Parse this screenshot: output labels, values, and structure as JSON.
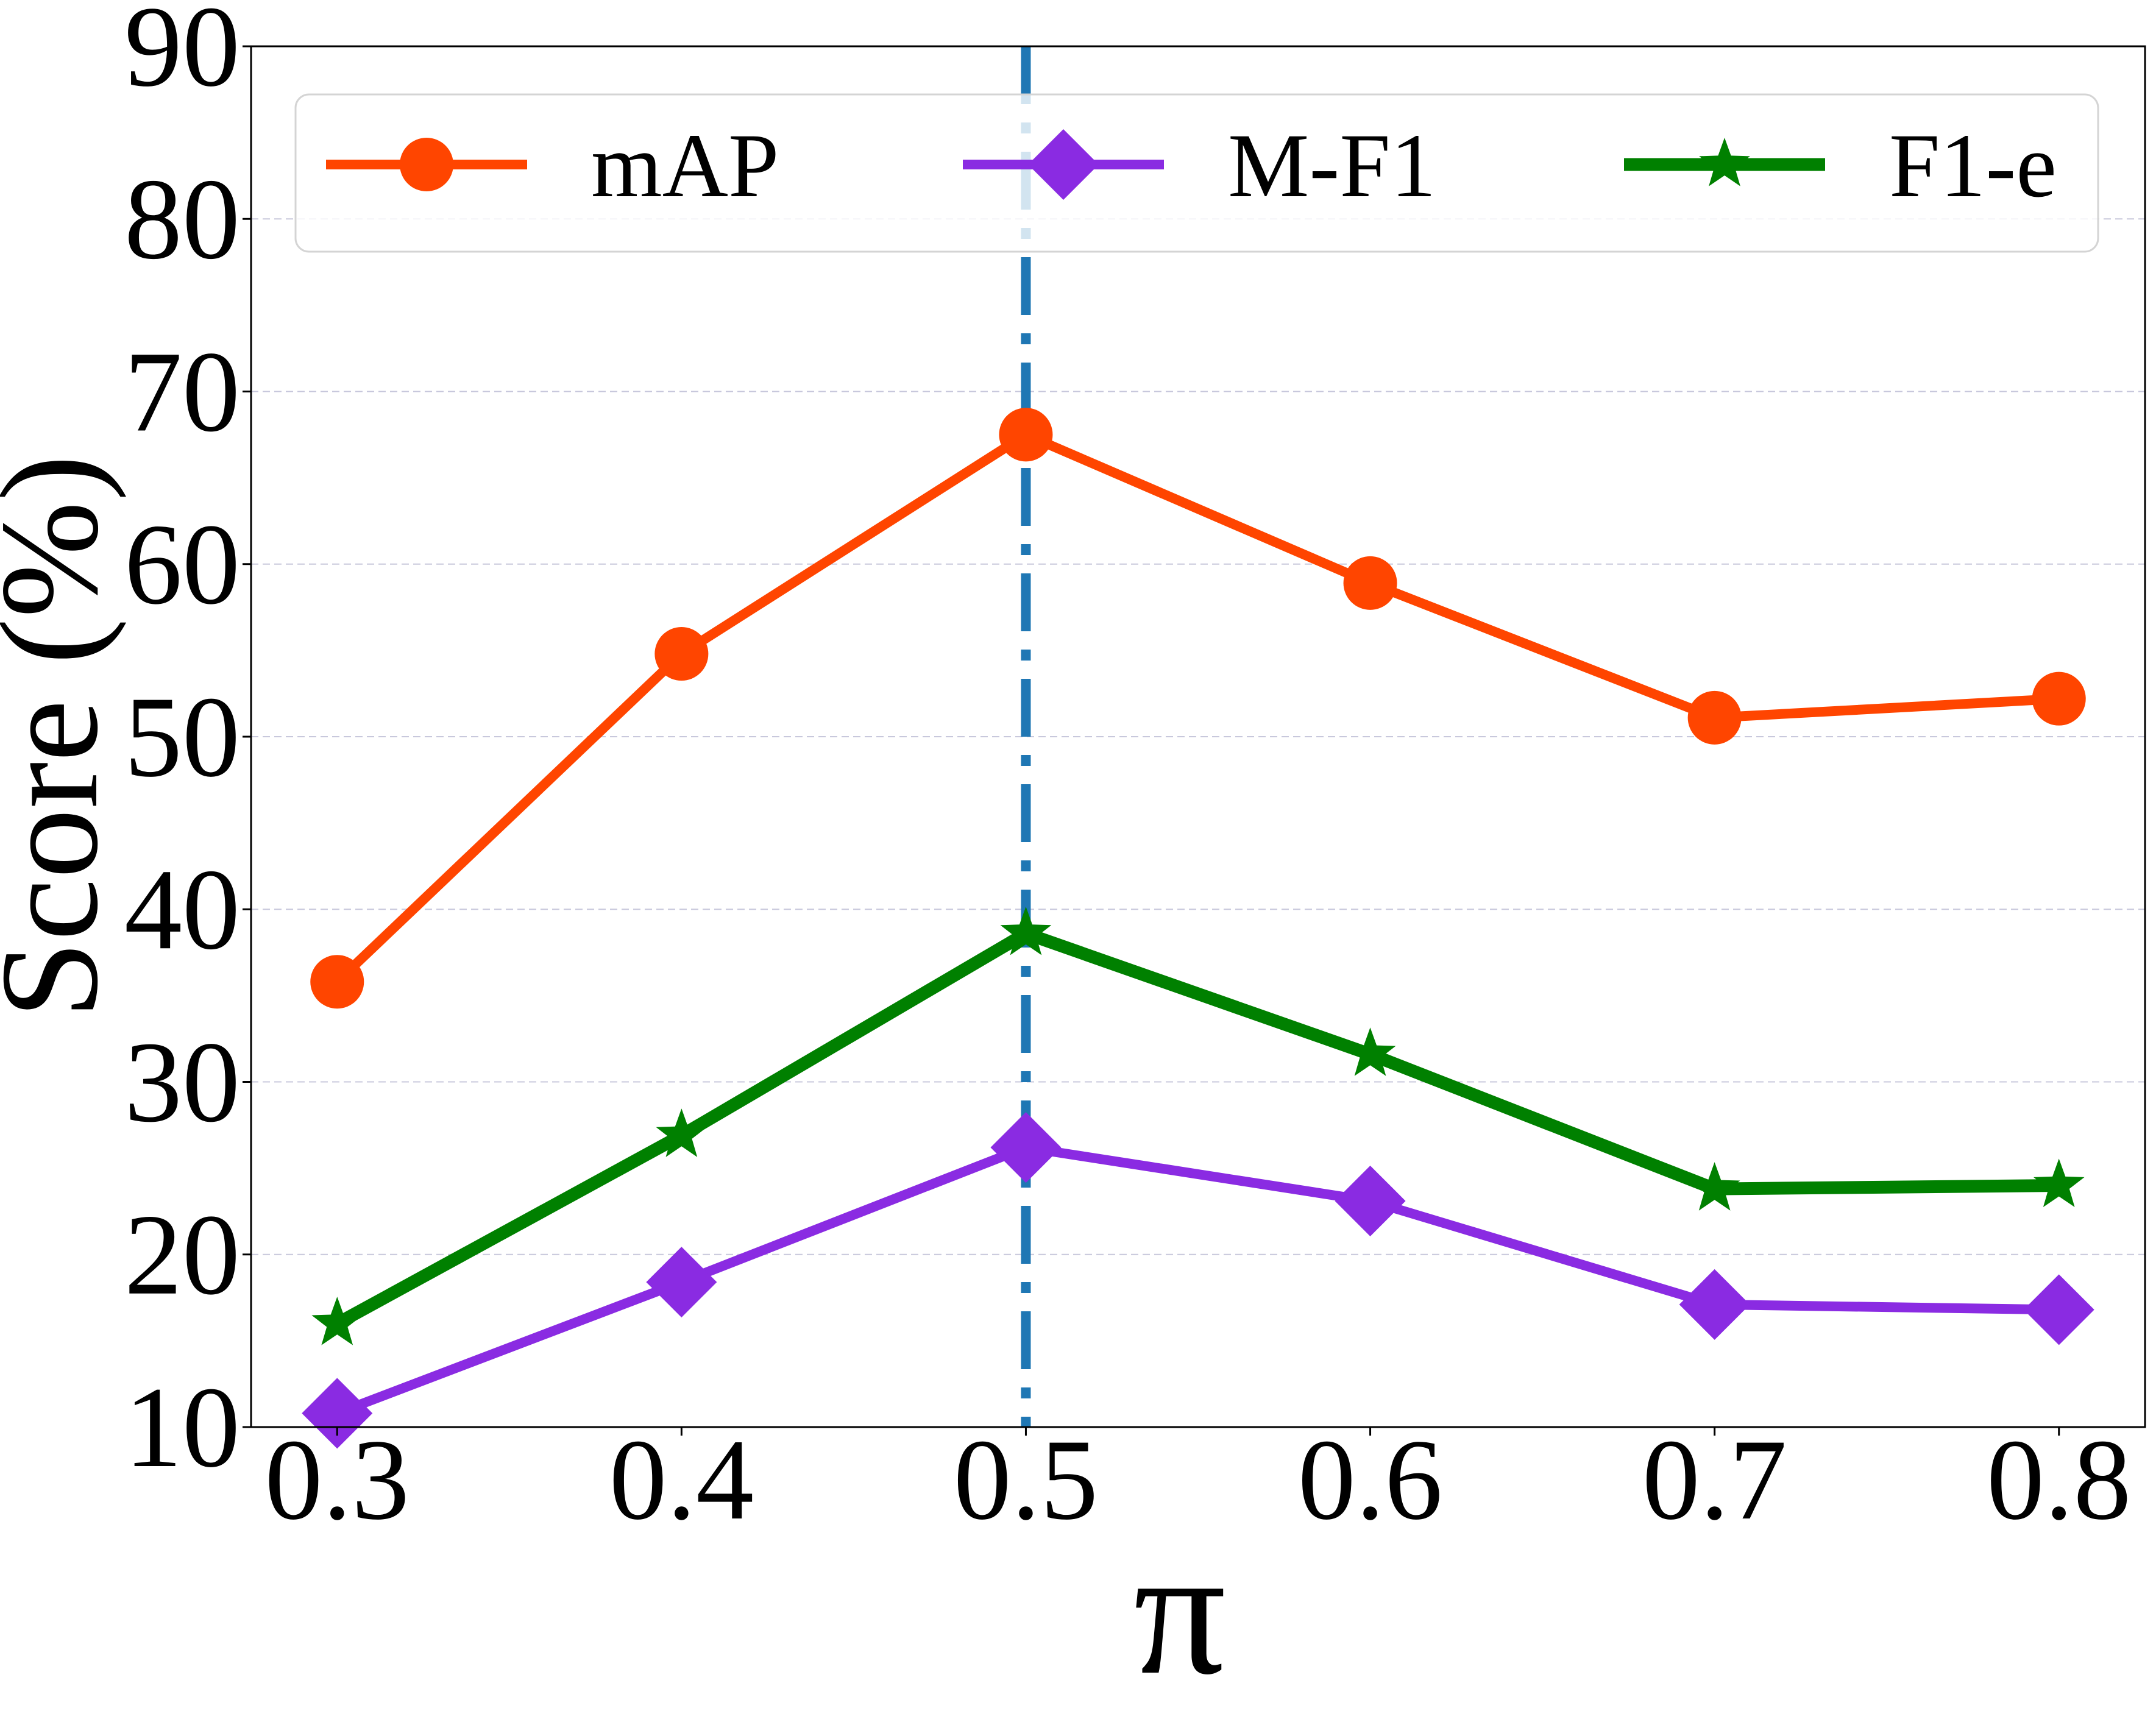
{
  "chart_data": {
    "type": "line",
    "title": "",
    "xlabel": "π",
    "ylabel": "Score (%)",
    "x": [
      0.3,
      0.4,
      0.5,
      0.6,
      0.7,
      0.8
    ],
    "x_tick_labels": [
      "0.3",
      "0.4",
      "0.5",
      "0.6",
      "0.7",
      "0.8"
    ],
    "xlim": [
      0.275,
      0.825
    ],
    "ylim": [
      10,
      90
    ],
    "y_ticks": [
      10,
      20,
      30,
      40,
      50,
      60,
      70,
      80,
      90
    ],
    "y_tick_labels": [
      "10",
      "20",
      "30",
      "40",
      "50",
      "60",
      "70",
      "80",
      "90"
    ],
    "grid": "horizontal dashed",
    "legend_position": "top",
    "reference_line": {
      "x": 0.5,
      "style": "dash-dot",
      "color": "#1f77b4"
    },
    "series": [
      {
        "name": "mAP",
        "color": "#ff4500",
        "marker": "circle",
        "values": [
          35.8,
          54.8,
          67.5,
          58.9,
          51.1,
          52.2
        ]
      },
      {
        "name": "M-F1",
        "color": "#8a2be2",
        "marker": "diamond",
        "values": [
          10.8,
          18.4,
          26.2,
          23.1,
          17.1,
          16.8
        ]
      },
      {
        "name": "F1-e",
        "color": "#008000",
        "marker": "star",
        "values": [
          16.0,
          26.9,
          38.6,
          31.6,
          23.8,
          24.0
        ]
      }
    ]
  }
}
